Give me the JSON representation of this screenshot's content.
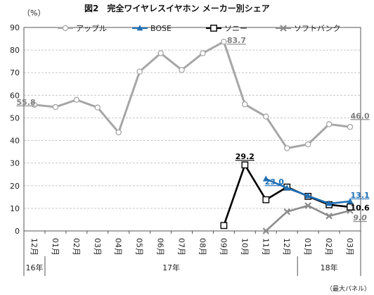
{
  "chart_data": {
    "type": "line",
    "title": "図2　完全ワイヤレスイヤホン メーカー別シェア",
    "unit": "（%）",
    "note": "（最大パネル）",
    "categories": [
      "12月",
      "01月",
      "02月",
      "03月",
      "04月",
      "05月",
      "06月",
      "07月",
      "08月",
      "09月",
      "10月",
      "11月",
      "12月",
      "01月",
      "02月",
      "03月"
    ],
    "year_labels": [
      {
        "label": "16年",
        "from": 0,
        "to": 0
      },
      {
        "label": "17年",
        "from": 1,
        "to": 12
      },
      {
        "label": "18年",
        "from": 13,
        "to": 15
      }
    ],
    "ylim": [
      0,
      90
    ],
    "yticks": [
      0,
      10,
      20,
      30,
      40,
      50,
      60,
      70,
      80,
      90
    ],
    "legend_position": "top",
    "series": [
      {
        "name": "アップル",
        "color": "#a6a6a6",
        "marker": "circle",
        "values": [
          55.8,
          54.8,
          58.0,
          54.6,
          43.6,
          70.5,
          78.6,
          71.2,
          78.6,
          83.7,
          56.0,
          50.6,
          36.6,
          38.3,
          47.2,
          46.0
        ]
      },
      {
        "name": "BOSE",
        "color": "#1f6fb4",
        "marker": "triangle",
        "values": [
          null,
          null,
          null,
          null,
          null,
          null,
          null,
          null,
          null,
          null,
          null,
          23.0,
          19.0,
          15.5,
          12.1,
          13.1
        ]
      },
      {
        "name": "ソニー",
        "color": "#000000",
        "marker": "square",
        "values": [
          null,
          null,
          null,
          null,
          null,
          null,
          null,
          null,
          null,
          2.4,
          29.2,
          13.8,
          19.4,
          15.3,
          11.6,
          10.6
        ]
      },
      {
        "name": "ソフトバンク",
        "color": "#8c8c8c",
        "marker": "x",
        "values": [
          null,
          null,
          null,
          null,
          null,
          null,
          null,
          null,
          null,
          null,
          null,
          0.0,
          8.5,
          11.2,
          6.6,
          9.0
        ]
      }
    ],
    "data_labels": [
      {
        "series": 0,
        "index": 0,
        "text": "55.8"
      },
      {
        "series": 0,
        "index": 9,
        "text": "83.7"
      },
      {
        "series": 0,
        "index": 15,
        "text": "46.0"
      },
      {
        "series": 1,
        "index": 11,
        "text": "23.0"
      },
      {
        "series": 1,
        "index": 15,
        "text": "13.1"
      },
      {
        "series": 2,
        "index": 10,
        "text": "29.2"
      },
      {
        "series": 2,
        "index": 15,
        "text": "10.6"
      },
      {
        "series": 3,
        "index": 15,
        "text": "9.0"
      }
    ]
  }
}
